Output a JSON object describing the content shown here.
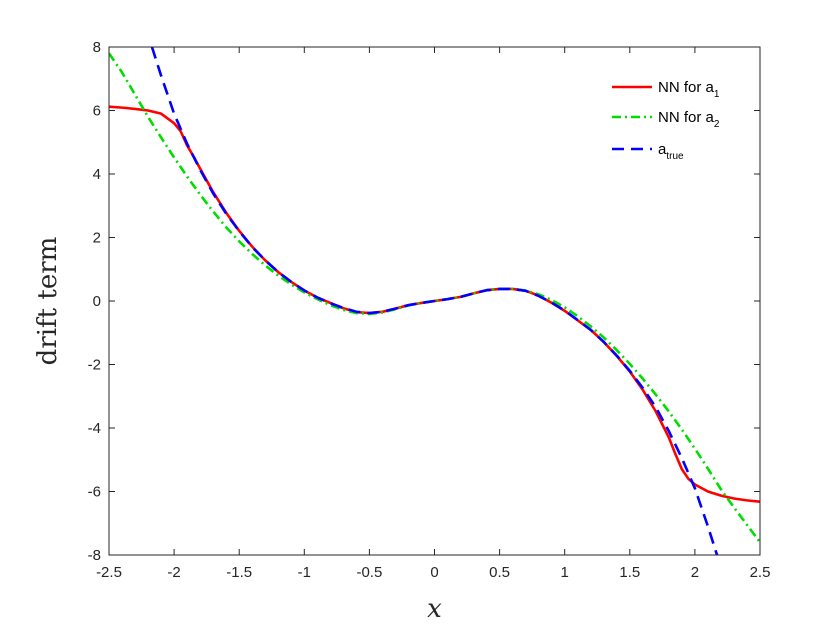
{
  "chart_data": {
    "type": "line",
    "title": "",
    "xlabel": "x",
    "ylabel": "drift term",
    "xlim": [
      -2.5,
      2.5
    ],
    "ylim": [
      -8,
      8
    ],
    "xticks": [
      -2.5,
      -2,
      -1.5,
      -1,
      -0.5,
      0,
      0.5,
      1,
      1.5,
      2,
      2.5
    ],
    "xtick_labels": [
      "-2.5",
      "-2",
      "-1.5",
      "-1",
      "-0.5",
      "0",
      "0.5",
      "1",
      "1.5",
      "2",
      "2.5"
    ],
    "yticks": [
      -8,
      -6,
      -4,
      -2,
      0,
      2,
      4,
      6,
      8
    ],
    "ytick_labels": [
      "-8",
      "-6",
      "-4",
      "-2",
      "0",
      "2",
      "4",
      "6",
      "8"
    ],
    "grid": false,
    "legend_position": "top-right",
    "series": [
      {
        "name": "NN for a1",
        "legend_main": "NN for a",
        "legend_sub": "1",
        "color": "#ff0000",
        "style": "solid",
        "x": [
          -2.5,
          -2.4,
          -2.3,
          -2.2,
          -2.1,
          -2.0,
          -1.95,
          -1.9,
          -1.85,
          -1.8,
          -1.7,
          -1.6,
          -1.5,
          -1.4,
          -1.3,
          -1.2,
          -1.1,
          -1.0,
          -0.9,
          -0.8,
          -0.7,
          -0.6,
          -0.5,
          -0.4,
          -0.3,
          -0.2,
          -0.1,
          0.0,
          0.1,
          0.2,
          0.3,
          0.4,
          0.5,
          0.6,
          0.7,
          0.8,
          0.9,
          1.0,
          1.1,
          1.2,
          1.3,
          1.4,
          1.5,
          1.6,
          1.7,
          1.8,
          1.85,
          1.9,
          1.95,
          2.0,
          2.1,
          2.2,
          2.3,
          2.4,
          2.5
        ],
        "y": [
          6.12,
          6.09,
          6.05,
          6.0,
          5.9,
          5.6,
          5.35,
          4.9,
          4.55,
          4.17,
          3.43,
          2.78,
          2.21,
          1.71,
          1.28,
          0.91,
          0.6,
          0.33,
          0.11,
          -0.06,
          -0.23,
          -0.35,
          -0.38,
          -0.34,
          -0.24,
          -0.13,
          -0.06,
          0.0,
          0.06,
          0.13,
          0.24,
          0.34,
          0.38,
          0.38,
          0.32,
          0.17,
          -0.06,
          -0.31,
          -0.61,
          -0.91,
          -1.29,
          -1.73,
          -2.22,
          -2.8,
          -3.48,
          -4.3,
          -4.82,
          -5.3,
          -5.6,
          -5.78,
          -6.0,
          -6.13,
          -6.22,
          -6.28,
          -6.32
        ]
      },
      {
        "name": "NN for a2",
        "legend_main": "NN for a",
        "legend_sub": "2",
        "color": "#00dd00",
        "style": "dashdot",
        "x": [
          -2.5,
          -2.4,
          -2.3,
          -2.2,
          -2.1,
          -2.0,
          -1.9,
          -1.8,
          -1.7,
          -1.6,
          -1.5,
          -1.4,
          -1.3,
          -1.2,
          -1.1,
          -1.0,
          -0.9,
          -0.8,
          -0.7,
          -0.6,
          -0.5,
          -0.4,
          -0.3,
          -0.2,
          -0.1,
          0.0,
          0.1,
          0.2,
          0.3,
          0.4,
          0.5,
          0.6,
          0.7,
          0.8,
          0.9,
          1.0,
          1.1,
          1.2,
          1.3,
          1.4,
          1.5,
          1.6,
          1.7,
          1.8,
          1.9,
          2.0,
          2.1,
          2.2,
          2.3,
          2.4,
          2.5
        ],
        "y": [
          7.8,
          7.2,
          6.5,
          5.8,
          5.15,
          4.52,
          3.92,
          3.35,
          2.82,
          2.32,
          1.88,
          1.48,
          1.12,
          0.8,
          0.52,
          0.27,
          0.06,
          -0.13,
          -0.28,
          -0.38,
          -0.41,
          -0.36,
          -0.26,
          -0.14,
          -0.06,
          0.0,
          0.06,
          0.13,
          0.24,
          0.34,
          0.38,
          0.38,
          0.33,
          0.21,
          0.03,
          -0.2,
          -0.48,
          -0.8,
          -1.15,
          -1.55,
          -1.98,
          -2.45,
          -2.95,
          -3.48,
          -4.05,
          -4.65,
          -5.28,
          -5.93,
          -6.5,
          -7.05,
          -7.6
        ]
      },
      {
        "name": "a true",
        "legend_main": "a",
        "legend_sub": "true",
        "color": "#0000ff",
        "style": "dashed",
        "x": [
          -2.17,
          -2.1,
          -2.0,
          -1.9,
          -1.8,
          -1.7,
          -1.6,
          -1.5,
          -1.4,
          -1.3,
          -1.2,
          -1.1,
          -1.0,
          -0.9,
          -0.8,
          -0.7,
          -0.6,
          -0.5,
          -0.4,
          -0.3,
          -0.2,
          -0.1,
          0.0,
          0.1,
          0.2,
          0.3,
          0.4,
          0.5,
          0.6,
          0.7,
          0.8,
          0.9,
          1.0,
          1.1,
          1.2,
          1.3,
          1.4,
          1.5,
          1.6,
          1.7,
          1.8,
          1.9,
          2.0,
          2.1,
          2.17
        ],
        "y": [
          8.0,
          7.1,
          5.9,
          4.95,
          4.13,
          3.39,
          2.75,
          2.2,
          1.7,
          1.28,
          0.91,
          0.6,
          0.33,
          0.11,
          -0.07,
          -0.22,
          -0.34,
          -0.38,
          -0.34,
          -0.24,
          -0.13,
          -0.06,
          0.0,
          0.06,
          0.13,
          0.24,
          0.34,
          0.38,
          0.38,
          0.32,
          0.16,
          -0.05,
          -0.3,
          -0.6,
          -0.91,
          -1.29,
          -1.72,
          -2.2,
          -2.74,
          -3.35,
          -4.1,
          -4.95,
          -5.9,
          -7.1,
          -8.0
        ]
      }
    ]
  }
}
